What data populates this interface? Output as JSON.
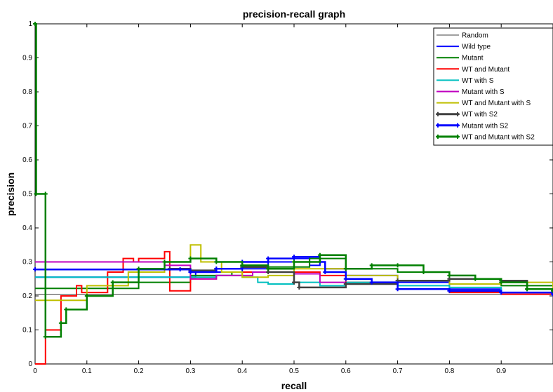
{
  "chart_data": {
    "type": "line",
    "title": "precision-recall graph",
    "xlabel": "recall",
    "ylabel": "precision",
    "xlim": [
      0,
      1
    ],
    "ylim": [
      0,
      1
    ],
    "x_ticks": [
      "0",
      "0.1",
      "0.2",
      "0.3",
      "0.4",
      "0.5",
      "0.6",
      "0.7",
      "0.8",
      "0.9"
    ],
    "y_ticks": [
      "0",
      "0.1",
      "0.2",
      "0.3",
      "0.4",
      "0.5",
      "0.6",
      "0.7",
      "0.8",
      "0.9",
      "1"
    ],
    "grid": false,
    "legend_position": "top-right",
    "series": [
      {
        "name": "Random",
        "color": "#000000",
        "width": 0.8,
        "marker": false,
        "points": [
          [
            0,
            0.205
          ],
          [
            1,
            0.205
          ]
        ]
      },
      {
        "name": "Wild type",
        "color": "#0000ff",
        "width": 2,
        "marker": false,
        "points": [
          [
            0,
            0.255
          ],
          [
            0.3,
            0.255
          ],
          [
            0.31,
            0.27
          ],
          [
            0.4,
            0.28
          ],
          [
            0.45,
            0.3
          ],
          [
            0.5,
            0.31
          ],
          [
            0.53,
            0.29
          ],
          [
            0.55,
            0.3
          ],
          [
            0.56,
            0.28
          ],
          [
            0.6,
            0.26
          ],
          [
            0.7,
            0.24
          ],
          [
            0.8,
            0.22
          ],
          [
            0.9,
            0.21
          ],
          [
            1,
            0.205
          ]
        ]
      },
      {
        "name": "Mutant",
        "color": "#008000",
        "width": 2,
        "marker": false,
        "points": [
          [
            0,
            0.222
          ],
          [
            0.15,
            0.222
          ],
          [
            0.2,
            0.24
          ],
          [
            0.25,
            0.24
          ],
          [
            0.3,
            0.26
          ],
          [
            0.38,
            0.27
          ],
          [
            0.45,
            0.285
          ],
          [
            0.53,
            0.31
          ],
          [
            0.6,
            0.28
          ],
          [
            0.7,
            0.27
          ],
          [
            0.8,
            0.25
          ],
          [
            0.9,
            0.23
          ],
          [
            1,
            0.21
          ]
        ]
      },
      {
        "name": "WT and Mutant",
        "color": "#ff0000",
        "width": 2,
        "marker": false,
        "points": [
          [
            0,
            0
          ],
          [
            0.02,
            0.1
          ],
          [
            0.05,
            0.2
          ],
          [
            0.08,
            0.23
          ],
          [
            0.09,
            0.21
          ],
          [
            0.14,
            0.27
          ],
          [
            0.17,
            0.31
          ],
          [
            0.19,
            0.3
          ],
          [
            0.2,
            0.31
          ],
          [
            0.25,
            0.33
          ],
          [
            0.26,
            0.215
          ],
          [
            0.3,
            0.25
          ],
          [
            0.35,
            0.26
          ],
          [
            0.4,
            0.27
          ],
          [
            0.45,
            0.28
          ],
          [
            0.5,
            0.27
          ],
          [
            0.55,
            0.26
          ],
          [
            0.6,
            0.24
          ],
          [
            0.7,
            0.22
          ],
          [
            0.8,
            0.21
          ],
          [
            0.9,
            0.205
          ],
          [
            1,
            0.2
          ]
        ]
      },
      {
        "name": "WT with S",
        "color": "#00bfbf",
        "width": 2,
        "marker": false,
        "points": [
          [
            0,
            0.255
          ],
          [
            0.3,
            0.255
          ],
          [
            0.35,
            0.26
          ],
          [
            0.4,
            0.255
          ],
          [
            0.43,
            0.24
          ],
          [
            0.45,
            0.235
          ],
          [
            0.5,
            0.24
          ],
          [
            0.55,
            0.23
          ],
          [
            0.6,
            0.24
          ],
          [
            0.7,
            0.23
          ],
          [
            0.8,
            0.225
          ],
          [
            0.9,
            0.21
          ],
          [
            1,
            0.205
          ]
        ]
      },
      {
        "name": "Mutant with S",
        "color": "#bf00bf",
        "width": 2,
        "marker": false,
        "points": [
          [
            0,
            0.3
          ],
          [
            0.2,
            0.3
          ],
          [
            0.25,
            0.29
          ],
          [
            0.3,
            0.25
          ],
          [
            0.35,
            0.26
          ],
          [
            0.42,
            0.27
          ],
          [
            0.5,
            0.265
          ],
          [
            0.55,
            0.24
          ],
          [
            0.6,
            0.235
          ],
          [
            0.7,
            0.22
          ],
          [
            0.8,
            0.215
          ],
          [
            0.9,
            0.21
          ],
          [
            1,
            0.205
          ]
        ]
      },
      {
        "name": "WT and Mutant with S",
        "color": "#bfbf00",
        "width": 2,
        "marker": false,
        "points": [
          [
            0,
            0.187
          ],
          [
            0.05,
            0.187
          ],
          [
            0.1,
            0.23
          ],
          [
            0.18,
            0.27
          ],
          [
            0.25,
            0.3
          ],
          [
            0.3,
            0.35
          ],
          [
            0.32,
            0.3
          ],
          [
            0.36,
            0.27
          ],
          [
            0.4,
            0.255
          ],
          [
            0.45,
            0.26
          ],
          [
            0.5,
            0.28
          ],
          [
            0.6,
            0.26
          ],
          [
            0.7,
            0.245
          ],
          [
            0.8,
            0.235
          ],
          [
            0.9,
            0.24
          ],
          [
            1,
            0.21
          ]
        ]
      },
      {
        "name": "WT with S2",
        "color": "#404040",
        "width": 2.5,
        "marker": true,
        "points": [
          [
            0.26,
            0.28
          ],
          [
            0.3,
            0.275
          ],
          [
            0.35,
            0.28
          ],
          [
            0.4,
            0.285
          ],
          [
            0.45,
            0.27
          ],
          [
            0.5,
            0.24
          ],
          [
            0.51,
            0.225
          ],
          [
            0.6,
            0.235
          ],
          [
            0.7,
            0.245
          ],
          [
            0.8,
            0.25
          ],
          [
            0.9,
            0.245
          ],
          [
            0.95,
            0.22
          ],
          [
            1,
            0.21
          ]
        ]
      },
      {
        "name": "Mutant with S2",
        "color": "#0000ff",
        "width": 2.5,
        "marker": true,
        "points": [
          [
            0,
            0.278
          ],
          [
            0.28,
            0.278
          ],
          [
            0.3,
            0.27
          ],
          [
            0.35,
            0.28
          ],
          [
            0.4,
            0.3
          ],
          [
            0.45,
            0.31
          ],
          [
            0.5,
            0.315
          ],
          [
            0.55,
            0.3
          ],
          [
            0.56,
            0.27
          ],
          [
            0.6,
            0.25
          ],
          [
            0.65,
            0.24
          ],
          [
            0.7,
            0.22
          ],
          [
            0.8,
            0.215
          ],
          [
            0.9,
            0.21
          ],
          [
            1,
            0.205
          ]
        ]
      },
      {
        "name": "WT and Mutant with S2",
        "color": "#008000",
        "width": 2.5,
        "marker": true,
        "points": [
          [
            0,
            1
          ],
          [
            0.002,
            0.5
          ],
          [
            0.02,
            0.5
          ],
          [
            0.02,
            0.08
          ],
          [
            0.05,
            0.12
          ],
          [
            0.06,
            0.16
          ],
          [
            0.1,
            0.2
          ],
          [
            0.15,
            0.24
          ],
          [
            0.2,
            0.28
          ],
          [
            0.25,
            0.3
          ],
          [
            0.3,
            0.31
          ],
          [
            0.35,
            0.3
          ],
          [
            0.4,
            0.29
          ],
          [
            0.45,
            0.28
          ],
          [
            0.5,
            0.3
          ],
          [
            0.55,
            0.32
          ],
          [
            0.6,
            0.28
          ],
          [
            0.65,
            0.29
          ],
          [
            0.7,
            0.29
          ],
          [
            0.75,
            0.27
          ],
          [
            0.8,
            0.26
          ],
          [
            0.85,
            0.25
          ],
          [
            0.9,
            0.24
          ],
          [
            0.95,
            0.22
          ],
          [
            1,
            0.215
          ]
        ]
      }
    ]
  }
}
